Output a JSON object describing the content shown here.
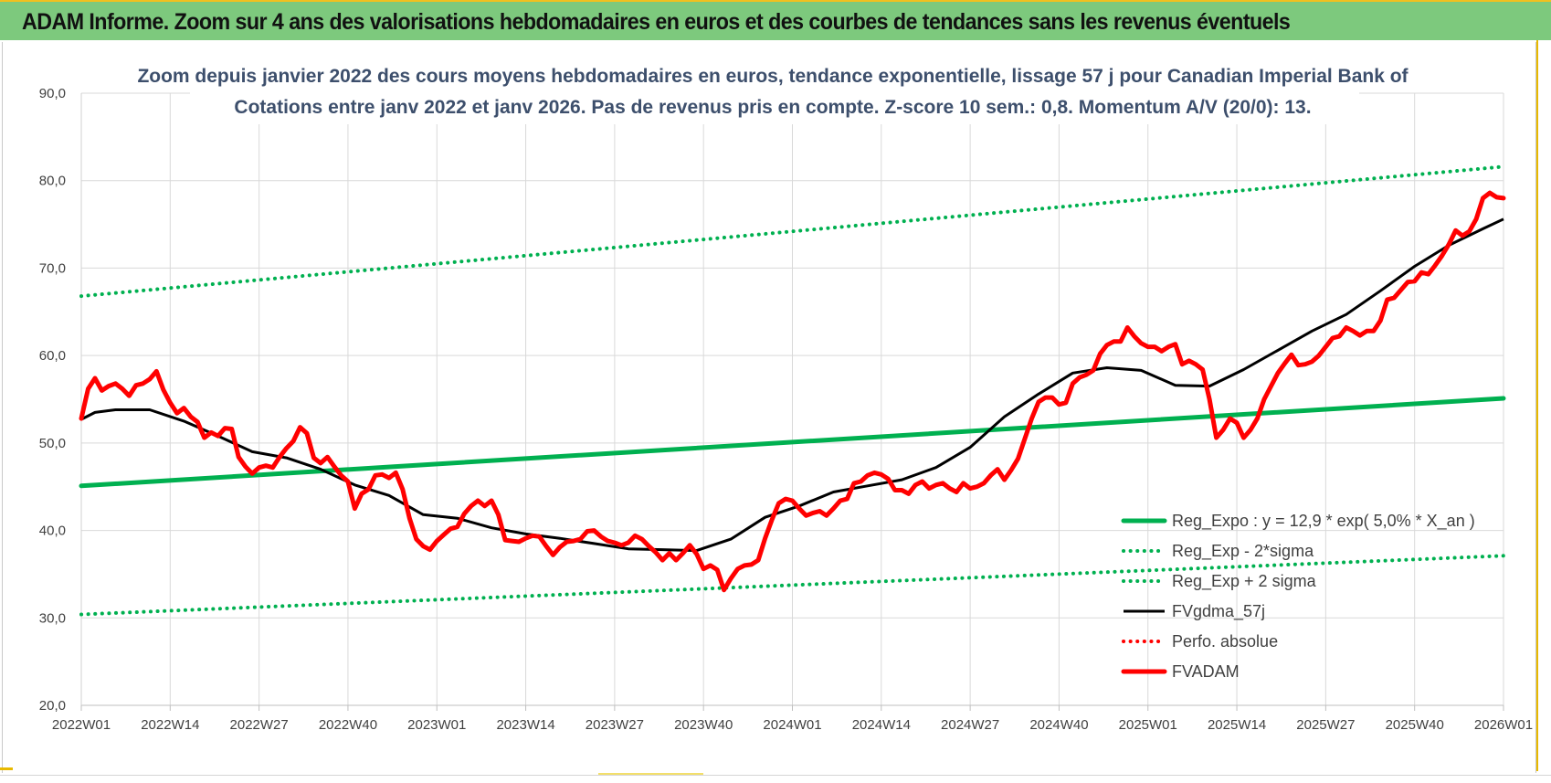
{
  "banner": {
    "title": "ADAM Informe. Zoom sur 4 ans des valorisations hebdomadaires en euros et des courbes de tendances sans les revenus éventuels"
  },
  "colors": {
    "banner_bg": "#7dc97d",
    "regression": "#00b050",
    "price": "#ff0000",
    "moving_average": "#000000",
    "grid": "#d9d9d9",
    "subtitle": "#3d4f6c"
  },
  "chart_data": {
    "type": "line",
    "title_lines": [
      "Zoom depuis janvier 2022 des cours moyens hebdomadaires en euros, tendance exponentielle, lissage 57 j pour Canadian Imperial Bank of",
      "Cotations entre janv 2022 et janv 2026. Pas de revenus pris en compte. Z-score 10 sem.: 0,8. Momentum A/V (20/0):  13."
    ],
    "xlabel": "",
    "ylabel": "",
    "ylim": [
      20,
      90
    ],
    "y_ticks": [
      "20,0",
      "30,0",
      "40,0",
      "50,0",
      "60,0",
      "70,0",
      "80,0",
      "90,0"
    ],
    "x_range_weeks": [
      0,
      208
    ],
    "x_ticks": [
      "2022W01",
      "2022W14",
      "2022W27",
      "2022W40",
      "2023W01",
      "2023W14",
      "2023W27",
      "2023W40",
      "2024W01",
      "2024W14",
      "2024W27",
      "2024W40",
      "2025W01",
      "2025W14",
      "2025W27",
      "2025W40",
      "2026W01"
    ],
    "grid": true,
    "legend_position": "bottom-right",
    "series": [
      {
        "name": "Reg_Expo : y = 12,9 * exp( 5,0% *  X_an )",
        "style": "solid-thick",
        "color": "#00b050",
        "x": [
          0,
          208
        ],
        "y": [
          45.1,
          55.1
        ]
      },
      {
        "name": "Reg_Exp - 2*sigma",
        "style": "dotted",
        "color": "#00b050",
        "x": [
          0,
          208
        ],
        "y": [
          30.4,
          37.1
        ]
      },
      {
        "name": "Reg_Exp + 2 sigma",
        "style": "dotted",
        "color": "#00b050",
        "x": [
          0,
          208
        ],
        "y": [
          66.8,
          81.6
        ]
      },
      {
        "name": "FVgdma_57j",
        "style": "solid",
        "color": "#000000",
        "x": [
          0,
          2,
          5,
          10,
          15,
          20,
          25,
          30,
          35,
          40,
          45,
          50,
          55,
          60,
          65,
          70,
          75,
          80,
          85,
          90,
          95,
          100,
          105,
          110,
          115,
          120,
          125,
          130,
          135,
          140,
          145,
          150,
          155,
          160,
          165,
          170,
          175,
          180,
          185,
          190,
          195,
          200,
          205,
          208
        ],
        "y": [
          52.7,
          53.5,
          53.8,
          53.8,
          52.5,
          50.8,
          49.0,
          48.3,
          47.0,
          45.2,
          44.0,
          41.8,
          41.4,
          40.3,
          39.6,
          39.1,
          38.5,
          37.9,
          37.8,
          37.7,
          39.0,
          41.5,
          42.8,
          44.4,
          45.1,
          45.8,
          47.2,
          49.5,
          53.0,
          55.6,
          58.0,
          58.6,
          58.3,
          56.6,
          56.5,
          58.4,
          60.6,
          62.8,
          64.7,
          67.4,
          70.2,
          72.6,
          74.5,
          75.6
        ]
      },
      {
        "name": "Perfo. absolue",
        "style": "dotted",
        "color": "#ff0000",
        "x": [],
        "y": []
      },
      {
        "name": "FVADAM",
        "style": "solid-thick",
        "color": "#ff0000",
        "x": [
          0,
          1,
          2,
          3,
          4,
          5,
          6,
          7,
          8,
          9,
          10,
          11,
          12,
          13,
          14,
          15,
          16,
          17,
          18,
          19,
          20,
          21,
          22,
          23,
          24,
          25,
          26,
          27,
          28,
          29,
          30,
          31,
          32,
          33,
          34,
          35,
          36,
          37,
          38,
          39,
          40,
          41,
          42,
          43,
          44,
          45,
          46,
          47,
          48,
          49,
          50,
          51,
          52,
          53,
          54,
          55,
          56,
          57,
          58,
          59,
          60,
          61,
          62,
          63,
          64,
          65,
          66,
          67,
          68,
          69,
          70,
          71,
          72,
          73,
          74,
          75,
          76,
          77,
          78,
          79,
          80,
          81,
          82,
          83,
          84,
          85,
          86,
          87,
          88,
          89,
          90,
          91,
          92,
          93,
          94,
          95,
          96,
          97,
          98,
          99,
          100,
          101,
          102,
          103,
          104,
          105,
          106,
          107,
          108,
          109,
          110,
          111,
          112,
          113,
          114,
          115,
          116,
          117,
          118,
          119,
          120,
          121,
          122,
          123,
          124,
          125,
          126,
          127,
          128,
          129,
          130,
          131,
          132,
          133,
          134,
          135,
          136,
          137,
          138,
          139,
          140,
          141,
          142,
          143,
          144,
          145,
          146,
          147,
          148,
          149,
          150,
          151,
          152,
          153,
          154,
          155,
          156,
          157,
          158,
          159,
          160,
          161,
          162,
          163,
          164,
          165,
          166,
          167,
          168,
          169,
          170,
          171,
          172,
          173,
          174,
          175,
          176,
          177,
          178,
          179,
          180,
          181,
          182,
          183,
          184,
          185,
          186,
          187,
          188,
          189,
          190,
          191,
          192,
          193,
          194,
          195,
          196,
          197,
          198,
          199,
          200,
          201,
          202,
          203,
          204,
          205,
          206,
          207,
          208
        ],
        "y": [
          52.8,
          56.2,
          57.4,
          56.0,
          56.5,
          56.8,
          56.2,
          55.4,
          56.6,
          56.8,
          57.3,
          58.2,
          56.1,
          54.6,
          53.4,
          54.0,
          53.0,
          52.4,
          50.6,
          51.2,
          50.8,
          51.7,
          51.6,
          48.4,
          47.3,
          46.5,
          47.2,
          47.4,
          47.2,
          48.4,
          49.4,
          50.2,
          51.8,
          51.1,
          48.3,
          47.7,
          48.4,
          47.3,
          46.3,
          45.6,
          42.5,
          44.2,
          44.7,
          46.3,
          46.4,
          46.0,
          46.6,
          44.7,
          41.4,
          39.0,
          38.2,
          37.8,
          38.8,
          39.5,
          40.2,
          40.4,
          41.9,
          42.8,
          43.4,
          42.8,
          43.4,
          41.8,
          38.9,
          38.8,
          38.7,
          39.1,
          39.4,
          39.3,
          38.2,
          37.2,
          38.1,
          38.7,
          38.8,
          39.0,
          39.9,
          40.0,
          39.3,
          38.8,
          38.6,
          38.3,
          38.6,
          39.4,
          39.0,
          38.2,
          37.5,
          36.6,
          37.4,
          36.6,
          37.4,
          38.3,
          37.3,
          35.6,
          36.0,
          35.5,
          33.2,
          34.5,
          35.6,
          36.0,
          36.1,
          36.6,
          39.1,
          41.2,
          43.1,
          43.6,
          43.4,
          42.5,
          41.7,
          42.0,
          42.2,
          41.7,
          42.5,
          43.4,
          43.6,
          45.4,
          45.6,
          46.3,
          46.6,
          46.4,
          45.9,
          44.6,
          44.6,
          44.2,
          45.2,
          45.6,
          44.8,
          45.2,
          45.4,
          44.8,
          44.4,
          45.4,
          44.8,
          45.0,
          45.4,
          46.3,
          47.0,
          45.8,
          46.9,
          48.2,
          50.5,
          52.8,
          54.7,
          55.2,
          55.2,
          54.4,
          54.6,
          56.8,
          57.5,
          57.8,
          58.3,
          60.2,
          61.2,
          61.6,
          61.6,
          63.2,
          62.2,
          61.4,
          61.0,
          61.0,
          60.5,
          61.0,
          61.3,
          59.0,
          59.4,
          59.0,
          58.4,
          55.0,
          50.6,
          51.5,
          52.8,
          52.3,
          50.6,
          51.5,
          52.8,
          55.0,
          56.5,
          58.0,
          59.1,
          60.1,
          58.9,
          59.0,
          59.3,
          60.0,
          61.0,
          62.0,
          62.2,
          63.2,
          62.8,
          62.3,
          62.8,
          62.8,
          64.0,
          66.4,
          66.6,
          67.5,
          68.4,
          68.5,
          69.5,
          69.3,
          70.3,
          71.4,
          72.7,
          74.3,
          73.7,
          74.2,
          75.6,
          78.0,
          78.6,
          78.1,
          78.0
        ]
      }
    ]
  }
}
